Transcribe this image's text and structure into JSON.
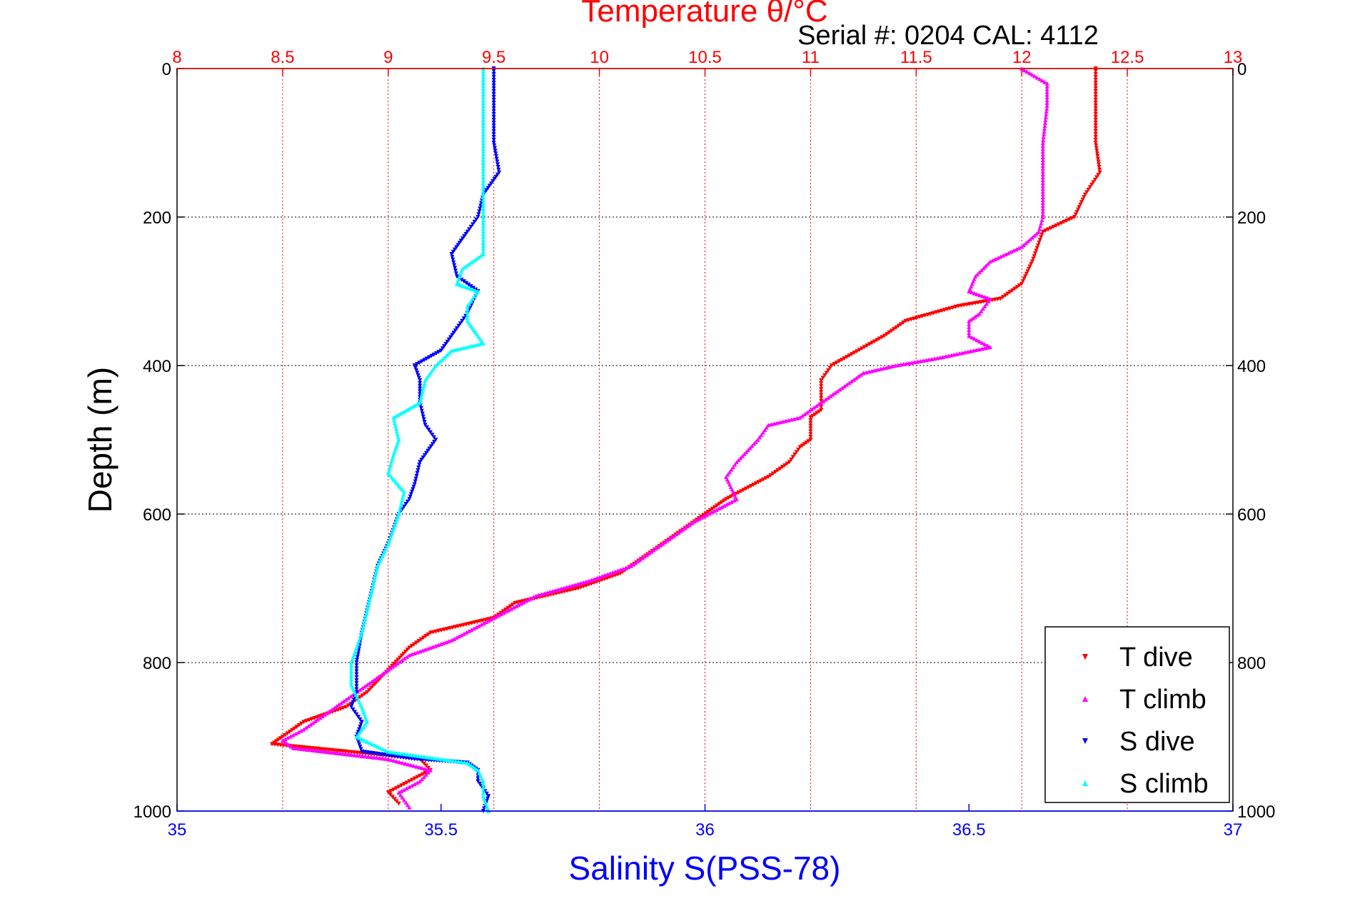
{
  "chart_data": {
    "type": "scatter",
    "title_top": "Temperature θ/°C",
    "serial": "Serial #: 0204  CAL: 4112",
    "ylabel": "Depth (m)",
    "xlabel_bottom": "Salinity S(PSS-78)",
    "depth_range": [
      0,
      1000
    ],
    "depth_ticks": [
      0,
      200,
      400,
      600,
      800,
      1000
    ],
    "temp_range": [
      8,
      13
    ],
    "temp_ticks": [
      8,
      8.5,
      9,
      9.5,
      10,
      10.5,
      11,
      11.5,
      12,
      12.5,
      13
    ],
    "sal_range": [
      35,
      37
    ],
    "sal_ticks": [
      35,
      35.5,
      36,
      36.5,
      37
    ],
    "colors": {
      "temp_axis": "#ff0000",
      "sal_axis": "#0000ff"
    },
    "legend": [
      {
        "label": "T dive",
        "color": "#ff0000",
        "marker": "down"
      },
      {
        "label": "T climb",
        "color": "#ff00ff",
        "marker": "up"
      },
      {
        "label": "S dive",
        "color": "#0000ff",
        "marker": "down"
      },
      {
        "label": "S climb",
        "color": "#00ffff",
        "marker": "up"
      }
    ],
    "series": [
      {
        "name": "T dive",
        "axis": "temp",
        "color": "#ff0000",
        "points": [
          [
            12.35,
            0
          ],
          [
            12.35,
            50
          ],
          [
            12.35,
            100
          ],
          [
            12.37,
            140
          ],
          [
            12.3,
            170
          ],
          [
            12.25,
            200
          ],
          [
            12.1,
            220
          ],
          [
            12.05,
            260
          ],
          [
            12.0,
            290
          ],
          [
            11.9,
            310
          ],
          [
            11.7,
            320
          ],
          [
            11.45,
            340
          ],
          [
            11.35,
            360
          ],
          [
            11.1,
            400
          ],
          [
            11.05,
            420
          ],
          [
            11.05,
            460
          ],
          [
            11.0,
            470
          ],
          [
            11.0,
            500
          ],
          [
            10.95,
            510
          ],
          [
            10.9,
            530
          ],
          [
            10.8,
            550
          ],
          [
            10.6,
            580
          ],
          [
            10.45,
            610
          ],
          [
            10.25,
            650
          ],
          [
            10.1,
            680
          ],
          [
            9.9,
            700
          ],
          [
            9.6,
            720
          ],
          [
            9.5,
            740
          ],
          [
            9.2,
            760
          ],
          [
            9.1,
            780
          ],
          [
            9.0,
            810
          ],
          [
            8.9,
            840
          ],
          [
            8.8,
            860
          ],
          [
            8.6,
            880
          ],
          [
            8.5,
            900
          ],
          [
            8.45,
            910
          ],
          [
            8.8,
            920
          ],
          [
            9.15,
            930
          ],
          [
            9.2,
            945
          ],
          [
            9.1,
            960
          ],
          [
            9.0,
            975
          ],
          [
            9.05,
            990
          ]
        ]
      },
      {
        "name": "T climb",
        "axis": "temp",
        "color": "#ff00ff",
        "points": [
          [
            12.0,
            0
          ],
          [
            12.12,
            20
          ],
          [
            12.12,
            50
          ],
          [
            12.1,
            100
          ],
          [
            12.1,
            150
          ],
          [
            12.1,
            200
          ],
          [
            12.08,
            220
          ],
          [
            12.0,
            240
          ],
          [
            11.85,
            260
          ],
          [
            11.78,
            280
          ],
          [
            11.75,
            300
          ],
          [
            11.85,
            310
          ],
          [
            11.8,
            330
          ],
          [
            11.75,
            340
          ],
          [
            11.75,
            360
          ],
          [
            11.85,
            375
          ],
          [
            11.6,
            390
          ],
          [
            11.4,
            400
          ],
          [
            11.25,
            410
          ],
          [
            11.15,
            430
          ],
          [
            11.05,
            450
          ],
          [
            10.95,
            470
          ],
          [
            10.8,
            480
          ],
          [
            10.75,
            500
          ],
          [
            10.65,
            530
          ],
          [
            10.6,
            550
          ],
          [
            10.65,
            580
          ],
          [
            10.45,
            610
          ],
          [
            10.3,
            640
          ],
          [
            10.15,
            670
          ],
          [
            9.95,
            690
          ],
          [
            9.7,
            710
          ],
          [
            9.5,
            740
          ],
          [
            9.3,
            770
          ],
          [
            9.1,
            790
          ],
          [
            9.0,
            810
          ],
          [
            8.9,
            830
          ],
          [
            8.8,
            850
          ],
          [
            8.7,
            870
          ],
          [
            8.6,
            890
          ],
          [
            8.5,
            905
          ],
          [
            8.55,
            915
          ],
          [
            8.7,
            920
          ],
          [
            9.0,
            930
          ],
          [
            9.2,
            945
          ],
          [
            9.15,
            960
          ],
          [
            9.05,
            975
          ],
          [
            9.1,
            995
          ]
        ]
      },
      {
        "name": "S dive",
        "axis": "sal",
        "color": "#0000ff",
        "points": [
          [
            35.6,
            0
          ],
          [
            35.6,
            50
          ],
          [
            35.6,
            100
          ],
          [
            35.61,
            140
          ],
          [
            35.58,
            170
          ],
          [
            35.57,
            200
          ],
          [
            35.55,
            220
          ],
          [
            35.52,
            250
          ],
          [
            35.53,
            280
          ],
          [
            35.57,
            300
          ],
          [
            35.55,
            330
          ],
          [
            35.53,
            350
          ],
          [
            35.5,
            380
          ],
          [
            35.45,
            400
          ],
          [
            35.46,
            420
          ],
          [
            35.46,
            450
          ],
          [
            35.47,
            480
          ],
          [
            35.49,
            500
          ],
          [
            35.46,
            530
          ],
          [
            35.45,
            560
          ],
          [
            35.44,
            580
          ],
          [
            35.42,
            600
          ],
          [
            35.4,
            640
          ],
          [
            35.38,
            670
          ],
          [
            35.37,
            700
          ],
          [
            35.36,
            730
          ],
          [
            35.35,
            760
          ],
          [
            35.34,
            800
          ],
          [
            35.34,
            840
          ],
          [
            35.33,
            860
          ],
          [
            35.35,
            880
          ],
          [
            35.34,
            900
          ],
          [
            35.35,
            920
          ],
          [
            35.45,
            930
          ],
          [
            35.55,
            935
          ],
          [
            35.57,
            945
          ],
          [
            35.57,
            960
          ],
          [
            35.59,
            980
          ],
          [
            35.58,
            1000
          ]
        ]
      },
      {
        "name": "S climb",
        "axis": "sal",
        "color": "#00ffff",
        "points": [
          [
            35.58,
            0
          ],
          [
            35.58,
            50
          ],
          [
            35.58,
            100
          ],
          [
            35.58,
            150
          ],
          [
            35.58,
            200
          ],
          [
            35.58,
            250
          ],
          [
            35.54,
            270
          ],
          [
            35.53,
            290
          ],
          [
            35.57,
            300
          ],
          [
            35.55,
            320
          ],
          [
            35.55,
            340
          ],
          [
            35.58,
            370
          ],
          [
            35.52,
            380
          ],
          [
            35.49,
            400
          ],
          [
            35.47,
            420
          ],
          [
            35.46,
            450
          ],
          [
            35.41,
            470
          ],
          [
            35.42,
            500
          ],
          [
            35.41,
            520
          ],
          [
            35.4,
            545
          ],
          [
            35.43,
            570
          ],
          [
            35.42,
            600
          ],
          [
            35.4,
            640
          ],
          [
            35.38,
            670
          ],
          [
            35.37,
            700
          ],
          [
            35.36,
            730
          ],
          [
            35.35,
            760
          ],
          [
            35.33,
            800
          ],
          [
            35.33,
            830
          ],
          [
            35.35,
            860
          ],
          [
            35.36,
            880
          ],
          [
            35.34,
            900
          ],
          [
            35.4,
            920
          ],
          [
            35.5,
            930
          ],
          [
            35.55,
            935
          ],
          [
            35.57,
            945
          ],
          [
            35.58,
            960
          ],
          [
            35.58,
            980
          ],
          [
            35.59,
            1000
          ]
        ]
      }
    ]
  }
}
